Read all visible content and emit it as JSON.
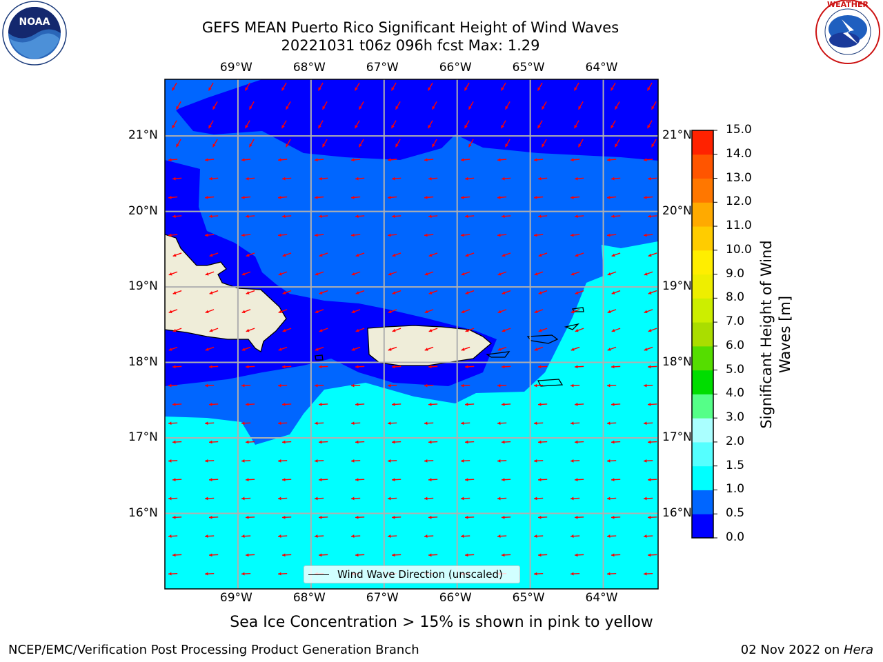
{
  "title": {
    "line1": "GEFS MEAN Puerto Rico Significant Height of Wind Waves",
    "line2": "20221031 t06z 096h fcst   Max: 1.29"
  },
  "logos": {
    "left": "noaa-logo",
    "right": "nws-logo"
  },
  "axes": {
    "lon_labels": [
      "69°W",
      "68°W",
      "67°W",
      "66°W",
      "65°W",
      "64°W"
    ],
    "lat_labels": [
      "21°N",
      "20°N",
      "19°N",
      "18°N",
      "17°N",
      "16°N"
    ],
    "lon_range": [
      -70,
      -63.25
    ],
    "lat_range": [
      15,
      21.75
    ]
  },
  "colorbar": {
    "title": "Significant Height of Wind Waves [m]",
    "ticks": [
      "0.0",
      "0.5",
      "1.0",
      "1.5",
      "2.0",
      "3.0",
      "4.0",
      "5.0",
      "6.0",
      "7.0",
      "8.0",
      "9.0",
      "10.0",
      "11.0",
      "12.0",
      "13.0",
      "14.0",
      "15.0"
    ],
    "colors": [
      "#0000ff",
      "#0066ff",
      "#00ffff",
      "#55ffff",
      "#aaffff",
      "#55ff88",
      "#00dd00",
      "#55dd00",
      "#aadd00",
      "#ccee00",
      "#eeee00",
      "#ffee00",
      "#ffcc00",
      "#ffaa00",
      "#ff7700",
      "#ff5500",
      "#ff2200"
    ]
  },
  "colors": {
    "land": "#efedd9",
    "arrow": "#ff0000",
    "grid": "#b0b0b0"
  },
  "legend": {
    "label": "Wind Wave Direction (unscaled)"
  },
  "ice_note": "Sea Ice Concentration > 15% is shown in pink to yellow",
  "footer": {
    "left": "NCEP/EMC/Verification Post Processing Product Generation Branch",
    "date": "02 Nov 2022 on ",
    "machine": "Hera"
  }
}
